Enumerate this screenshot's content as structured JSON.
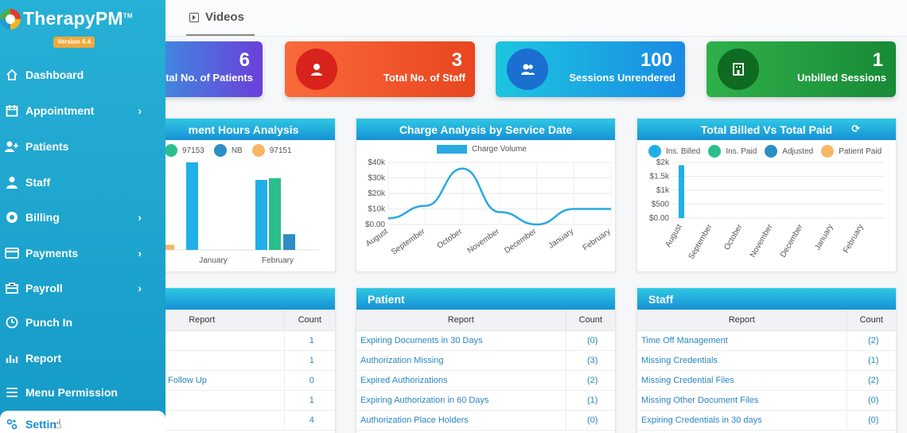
{
  "app": {
    "name": "TherapyPM",
    "tm": "TM",
    "version": "Version 6.4"
  },
  "tabs": {
    "videos": "Videos"
  },
  "sidebar": {
    "items": [
      {
        "label": "Dashboard"
      },
      {
        "label": "Appointment"
      },
      {
        "label": "Patients"
      },
      {
        "label": "Staff"
      },
      {
        "label": "Billing"
      },
      {
        "label": "Payments"
      },
      {
        "label": "Payroll"
      },
      {
        "label": "Punch In"
      },
      {
        "label": "Report"
      },
      {
        "label": "Menu Permission"
      },
      {
        "label": "Settin"
      }
    ]
  },
  "stats": [
    {
      "value": "6",
      "label": "tal No. of Patients"
    },
    {
      "value": "3",
      "label": "Total No. of Staff"
    },
    {
      "value": "100",
      "label": "Sessions Unrendered"
    },
    {
      "value": "1",
      "label": "Unbilled Sessions"
    }
  ],
  "panels": {
    "hours": {
      "title": "ment Hours Analysis",
      "legend": [
        "97153",
        "NB",
        "97151"
      ]
    },
    "charge": {
      "title": "Charge Analysis by Service Date",
      "legend": [
        "Charge Volume"
      ]
    },
    "billed": {
      "title": "Total Billed Vs Total Paid",
      "legend": [
        "Ins. Billed",
        "Ins. Paid",
        "Adjusted",
        "Patient Paid"
      ]
    },
    "report_left": {
      "col_report": "Report",
      "col_count": "Count",
      "rows": [
        {
          "name": "",
          "count": "1"
        },
        {
          "name": "",
          "count": "1"
        },
        {
          "name": "Follow Up",
          "count": "0"
        },
        {
          "name": "",
          "count": "1"
        },
        {
          "name": "",
          "count": "4"
        }
      ]
    },
    "patient": {
      "title": "Patient",
      "col_report": "Report",
      "col_count": "Count",
      "rows": [
        {
          "name": "Expiring Documents in 30 Days",
          "count": "(0)"
        },
        {
          "name": "Authorization Missing",
          "count": "(3)"
        },
        {
          "name": "Expired Authorizations",
          "count": "(2)"
        },
        {
          "name": "Expiring Authorization in 60 Days",
          "count": "(1)"
        },
        {
          "name": "Authorization Place Holders",
          "count": "(0)"
        }
      ]
    },
    "staff": {
      "title": "Staff",
      "col_report": "Report",
      "col_count": "Count",
      "rows": [
        {
          "name": "Time Off Management",
          "count": "(2)"
        },
        {
          "name": "Missing Credentials",
          "count": "(1)"
        },
        {
          "name": "Missing Credential Files",
          "count": "(2)"
        },
        {
          "name": "Missing Other Document Files",
          "count": "(0)"
        },
        {
          "name": "Expiring Credentials in 30 days",
          "count": "(0)"
        }
      ]
    }
  },
  "chart_data": [
    {
      "type": "bar",
      "title": "ment Hours Analysis",
      "categories": [
        "January",
        "February"
      ],
      "series": [
        {
          "name": "97153",
          "values": [
            null,
            41
          ]
        },
        {
          "name": "NB",
          "values": [
            null,
            9
          ]
        },
        {
          "name": "97151",
          "values": [
            3,
            null
          ]
        },
        {
          "name": "",
          "values": [
            50,
            40
          ]
        }
      ],
      "colors": [
        "#2bbf8d",
        "#2c8ec4",
        "#f5b866",
        "#21afe8"
      ]
    },
    {
      "type": "line",
      "title": "Charge Analysis by Service Date",
      "series": [
        {
          "name": "Charge Volume",
          "values": [
            4000,
            12000,
            36000,
            8000,
            0,
            10000,
            10000
          ]
        }
      ],
      "x": [
        "August",
        "September",
        "October",
        "November",
        "December",
        "January",
        "February"
      ],
      "y_ticks": [
        "$0.00",
        "$10k",
        "$20k",
        "$30k",
        "$40k"
      ],
      "ylim": [
        0,
        40000
      ],
      "color": "#29a9e0"
    },
    {
      "type": "bar",
      "title": "Total Billed Vs Total Paid",
      "x": [
        "August",
        "September",
        "October",
        "November",
        "December",
        "January",
        "February"
      ],
      "series": [
        {
          "name": "Ins. Billed",
          "values": [
            1900,
            0,
            0,
            0,
            0,
            0,
            0
          ]
        },
        {
          "name": "Ins. Paid",
          "values": [
            0,
            0,
            0,
            0,
            0,
            0,
            0
          ]
        },
        {
          "name": "Adjusted",
          "values": [
            0,
            0,
            0,
            0,
            0,
            0,
            0
          ]
        },
        {
          "name": "Patient Paid",
          "values": [
            0,
            0,
            0,
            0,
            0,
            0,
            0
          ]
        }
      ],
      "y_ticks": [
        "$0.00",
        "$500",
        "$1k",
        "$1.5k",
        "$2k"
      ],
      "ylim": [
        0,
        2000
      ],
      "colors": [
        "#21afe8",
        "#2bbf8d",
        "#2c8ec4",
        "#f5b866"
      ]
    }
  ]
}
